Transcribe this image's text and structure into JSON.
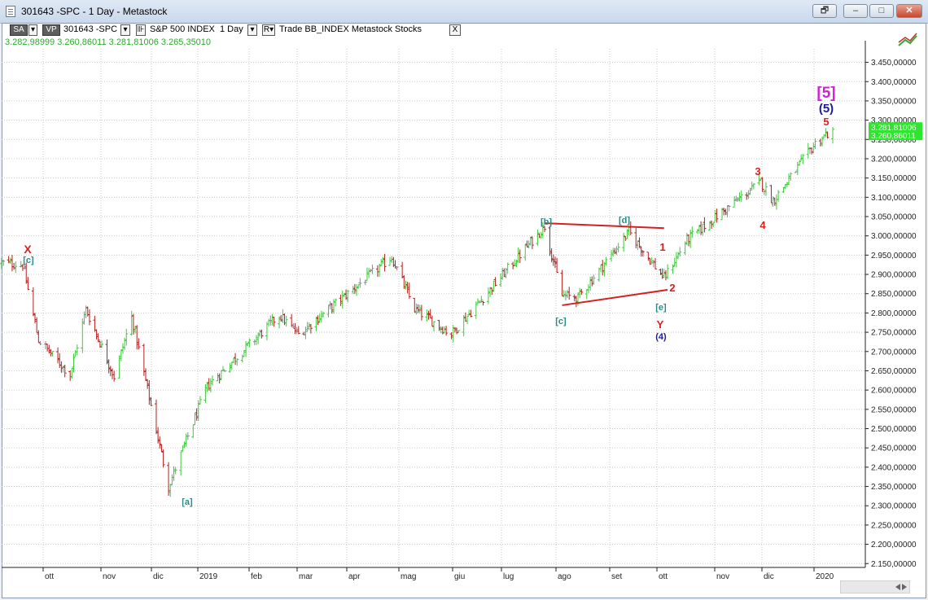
{
  "window": {
    "title": "301643 -SPC - 1 Day - Metastock",
    "buttons": [
      "🗗",
      "–",
      "□",
      "✕"
    ]
  },
  "toolbar": {
    "sa_label": "SA",
    "vp_label": "VP",
    "symbol": "301643 -SPC",
    "instrument": "S&P 500 INDEX",
    "interval": "1 Day",
    "r_label": "R▾",
    "info": "Trade  BB_INDEX  Metastock  Stocks",
    "close_label": "X"
  },
  "quote_line": "3.282,98999  3.260,86011  3.281,81006  3.265,35010",
  "price_tags": [
    "3.281,81006",
    "3.260,86011"
  ],
  "chart_data": {
    "type": "ohlc",
    "y_range": [
      2150,
      3500
    ],
    "y_ticks": [
      "3.450,00000",
      "3.400,00000",
      "3.350,00000",
      "3.300,00000",
      "3.250,00000",
      "3.200,00000",
      "3.150,00000",
      "3.100,00000",
      "3.050,00000",
      "3.000,00000",
      "2.950,00000",
      "2.900,00000",
      "2.850,00000",
      "2.800,00000",
      "2.750,00000",
      "2.700,00000",
      "2.650,00000",
      "2.600,00000",
      "2.550,00000",
      "2.500,00000",
      "2.450,00000",
      "2.400,00000",
      "2.350,00000",
      "2.300,00000",
      "2.250,00000",
      "2.200,00000",
      "2.150,00000"
    ],
    "x_ticks": [
      "ott",
      "nov",
      "dic",
      "2019",
      "feb",
      "mar",
      "apr",
      "mag",
      "giu",
      "lug",
      "ago",
      "set",
      "ott",
      "nov",
      "dic",
      "2020"
    ],
    "wave_labels": [
      {
        "text": "X",
        "color": "#d61f1f"
      },
      {
        "text": "[c]",
        "color": "#2a8a8a"
      },
      {
        "text": "[a]",
        "color": "#2a8a8a"
      },
      {
        "text": "[b]",
        "color": "#2a8a8a"
      },
      {
        "text": "[d]",
        "color": "#2a8a8a"
      },
      {
        "text": "[c]",
        "color": "#2a8a8a"
      },
      {
        "text": "[e]",
        "color": "#2a8a8a"
      },
      {
        "text": "Y",
        "color": "#d61f1f"
      },
      {
        "text": "(4)",
        "color": "#1a1aa0"
      },
      {
        "text": "1",
        "color": "#d61f1f"
      },
      {
        "text": "2",
        "color": "#d61f1f"
      },
      {
        "text": "3",
        "color": "#d61f1f"
      },
      {
        "text": "4",
        "color": "#d61f1f"
      },
      {
        "text": "5",
        "color": "#d61f1f"
      },
      {
        "text": "(5)",
        "color": "#1a1aa0"
      },
      {
        "text": "[5]",
        "color": "#d61fd6"
      }
    ],
    "anchors": [
      {
        "date": "2018-09-20",
        "close": 2930
      },
      {
        "date": "2018-10-02",
        "close": 2925
      },
      {
        "date": "2018-10-11",
        "close": 2730
      },
      {
        "date": "2018-10-29",
        "close": 2640
      },
      {
        "date": "2018-11-07",
        "close": 2810
      },
      {
        "date": "2018-11-23",
        "close": 2635
      },
      {
        "date": "2018-12-03",
        "close": 2790
      },
      {
        "date": "2018-12-24",
        "close": 2350
      },
      {
        "date": "2019-01-15",
        "close": 2610
      },
      {
        "date": "2019-02-25",
        "close": 2795
      },
      {
        "date": "2019-03-08",
        "close": 2745
      },
      {
        "date": "2019-04-30",
        "close": 2945
      },
      {
        "date": "2019-05-13",
        "close": 2810
      },
      {
        "date": "2019-06-03",
        "close": 2745
      },
      {
        "date": "2019-07-26",
        "close": 3025
      },
      {
        "date": "2019-08-05",
        "close": 2845
      },
      {
        "date": "2019-08-14",
        "close": 2840
      },
      {
        "date": "2019-09-12",
        "close": 3010
      },
      {
        "date": "2019-10-02",
        "close": 2890
      },
      {
        "date": "2019-10-15",
        "close": 2990
      },
      {
        "date": "2019-11-26",
        "close": 3140
      },
      {
        "date": "2019-12-03",
        "close": 3090
      },
      {
        "date": "2019-12-27",
        "close": 3240
      },
      {
        "date": "2020-01-03",
        "close": 3265
      }
    ],
    "colors": {
      "up": "#3ec83e",
      "down": "#b31e1e",
      "neutral": "#8a8a8a",
      "trendline": "#d61f1f",
      "grid": "#c8c8c8"
    }
  }
}
